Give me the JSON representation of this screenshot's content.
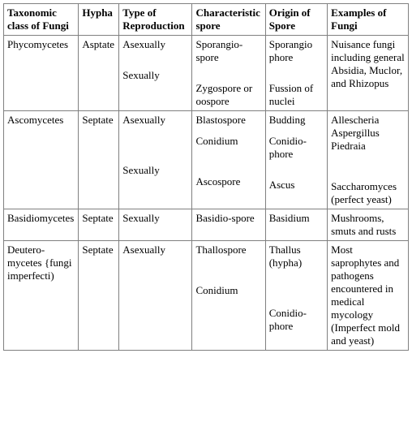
{
  "headers": {
    "c1": "Taxonomic class of Fungi",
    "c2": "Hypha",
    "c3": "Type of Reproduction",
    "c4": "Characteristic spore",
    "c5": "Origin of Spore",
    "c6": "Examples of Fungi"
  },
  "rows": {
    "r1": {
      "class": "Phycomycetes",
      "hypha": "Asptate",
      "repro1": "Asexually",
      "repro2": "Sexually",
      "spore1": "Sporangio-spore",
      "spore2": "Zygospore or oospore",
      "origin1": "Sporangio phore",
      "origin2": "Fussion of nuclei",
      "examples": "Nuisance fungi including general Absidia, Muclor, and Rhizopus"
    },
    "r2": {
      "class": "Ascomycetes",
      "hypha": "Septate",
      "repro1": "Asexually",
      "repro2": "Sexually",
      "spore1": "Blastospore",
      "spore2": "Conidium",
      "spore3": "Ascospore",
      "origin1": "Budding",
      "origin2": "Conidio-phore",
      "origin3": "Ascus",
      "examples1": "Allescheria Aspergillus Piedraia",
      "examples2": "Saccharomyces (perfect yeast)"
    },
    "r3": {
      "class": "Basidiomycetes",
      "hypha": "Septate",
      "repro1": "Sexually",
      "spore1": "Basidio-spore",
      "origin1": "Basidium",
      "examples": "Mushrooms, smuts and rusts"
    },
    "r4": {
      "class": "Deutero-mycetes {fungi imperfecti)",
      "hypha": "Septate",
      "repro1": "Asexually",
      "spore1": "Thallospore",
      "spore2": "Conidium",
      "origin1": "Thallus (hypha)",
      "origin2": "Conidio-phore",
      "examples": "Most saprophytes and pathogens encountered in medical mycology (Imperfect mold and yeast)"
    }
  }
}
